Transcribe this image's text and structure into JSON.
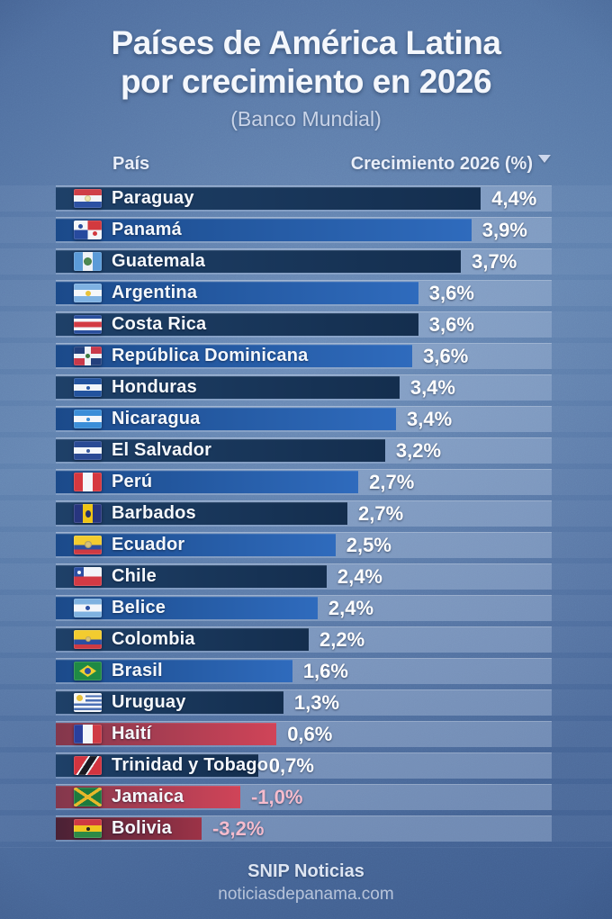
{
  "header": {
    "title_line1": "Países de América Latina",
    "title_line2": "por crecimiento en 2026",
    "subtitle": "(Banco Mundial)"
  },
  "table": {
    "col_country": "País",
    "col_value": "Crecimiento 2026 (%)",
    "sort_order": "descending"
  },
  "footer": {
    "brand": "SNIP Noticias",
    "website": "noticiasdepanama.com"
  },
  "colors": {
    "background": "#4e6d9e",
    "row_band": "rgba(167,188,218,0.40)",
    "title_text": "#f4f7fc",
    "subtitle_text": "#c9d4e8",
    "value_text": "#ffffff",
    "negative_text": "#f5bccd",
    "sort_icon": "#ccd6ec",
    "bars": {
      "navy": [
        "#1e4068",
        "#142e4e"
      ],
      "blue": [
        "#1b4a8a",
        "#2f6bbd"
      ],
      "red": [
        "#83374c",
        "#d04458"
      ],
      "darkred": [
        "#4a2135",
        "#9c3347"
      ]
    }
  },
  "chart_data": {
    "type": "bar",
    "orientation": "horizontal",
    "title": "Países de América Latina por crecimiento en 2026",
    "subtitle": "(Banco Mundial)",
    "xlabel": "Crecimiento 2026 (%)",
    "ylabel": "País",
    "sort": "descending",
    "legend": false,
    "grid": false,
    "rows": [
      {
        "country": "Paraguay",
        "value": 4.4,
        "label": "4,4%",
        "bar_pct": 85.7,
        "color": "navy",
        "negative": false,
        "flag": "paraguay"
      },
      {
        "country": "Panamá",
        "value": 3.9,
        "label": "3,9%",
        "bar_pct": 83.8,
        "color": "blue",
        "negative": false,
        "flag": "panama"
      },
      {
        "country": "Guatemala",
        "value": 3.7,
        "label": "3,7%",
        "bar_pct": 81.7,
        "color": "navy",
        "negative": false,
        "flag": "guatemala"
      },
      {
        "country": "Argentina",
        "value": 3.6,
        "label": "3,6%",
        "bar_pct": 73.1,
        "color": "blue",
        "negative": false,
        "flag": "argentina"
      },
      {
        "country": "Costa Rica",
        "value": 3.6,
        "label": "3,6%",
        "bar_pct": 73.1,
        "color": "navy",
        "negative": false,
        "flag": "costarica"
      },
      {
        "country": "República Dominicana",
        "value": 3.6,
        "label": "3,6%",
        "bar_pct": 71.9,
        "color": "blue",
        "negative": false,
        "flag": "dominicana"
      },
      {
        "country": "Honduras",
        "value": 3.4,
        "label": "3,4%",
        "bar_pct": 69.3,
        "color": "navy",
        "negative": false,
        "flag": "honduras"
      },
      {
        "country": "Nicaragua",
        "value": 3.4,
        "label": "3,4%",
        "bar_pct": 68.6,
        "color": "blue",
        "negative": false,
        "flag": "nicaragua"
      },
      {
        "country": "El Salvador",
        "value": 3.2,
        "label": "3,2%",
        "bar_pct": 66.4,
        "color": "navy",
        "negative": false,
        "flag": "elsalvador"
      },
      {
        "country": "Perú",
        "value": 2.7,
        "label": "2,7%",
        "bar_pct": 61.0,
        "color": "blue",
        "negative": false,
        "flag": "peru"
      },
      {
        "country": "Barbados",
        "value": 2.7,
        "label": "2,7%",
        "bar_pct": 58.8,
        "color": "navy",
        "negative": false,
        "flag": "barbados"
      },
      {
        "country": "Ecuador",
        "value": 2.5,
        "label": "2,5%",
        "bar_pct": 56.4,
        "color": "blue",
        "negative": false,
        "flag": "ecuador"
      },
      {
        "country": "Chile",
        "value": 2.4,
        "label": "2,4%",
        "bar_pct": 54.6,
        "color": "navy",
        "negative": false,
        "flag": "chile"
      },
      {
        "country": "Belice",
        "value": 2.4,
        "label": "2,4%",
        "bar_pct": 52.8,
        "color": "blue",
        "negative": false,
        "flag": "belice"
      },
      {
        "country": "Colombia",
        "value": 2.2,
        "label": "2,2%",
        "bar_pct": 51.0,
        "color": "navy",
        "negative": false,
        "flag": "colombia"
      },
      {
        "country": "Brasil",
        "value": 1.6,
        "label": "1,6%",
        "bar_pct": 47.7,
        "color": "blue",
        "negative": false,
        "flag": "brasil"
      },
      {
        "country": "Uruguay",
        "value": 1.3,
        "label": "1,3%",
        "bar_pct": 45.9,
        "color": "navy",
        "negative": false,
        "flag": "uruguay"
      },
      {
        "country": "Haití",
        "value": 0.6,
        "label": "0,6%",
        "bar_pct": 44.5,
        "color": "red",
        "negative": false,
        "flag": "haiti"
      },
      {
        "country": "Trinidad y Tobago",
        "value": 0.7,
        "label": "0,7%",
        "bar_pct": 40.8,
        "color": "navy",
        "negative": false,
        "flag": "trinidad"
      },
      {
        "country": "Jamaica",
        "value": -1.0,
        "label": "-1,0%",
        "bar_pct": 37.2,
        "color": "red",
        "negative": true,
        "flag": "jamaica"
      },
      {
        "country": "Bolivia",
        "value": -3.2,
        "label": "-3,2%",
        "bar_pct": 29.4,
        "color": "darkred",
        "negative": true,
        "flag": "bolivia"
      }
    ]
  }
}
